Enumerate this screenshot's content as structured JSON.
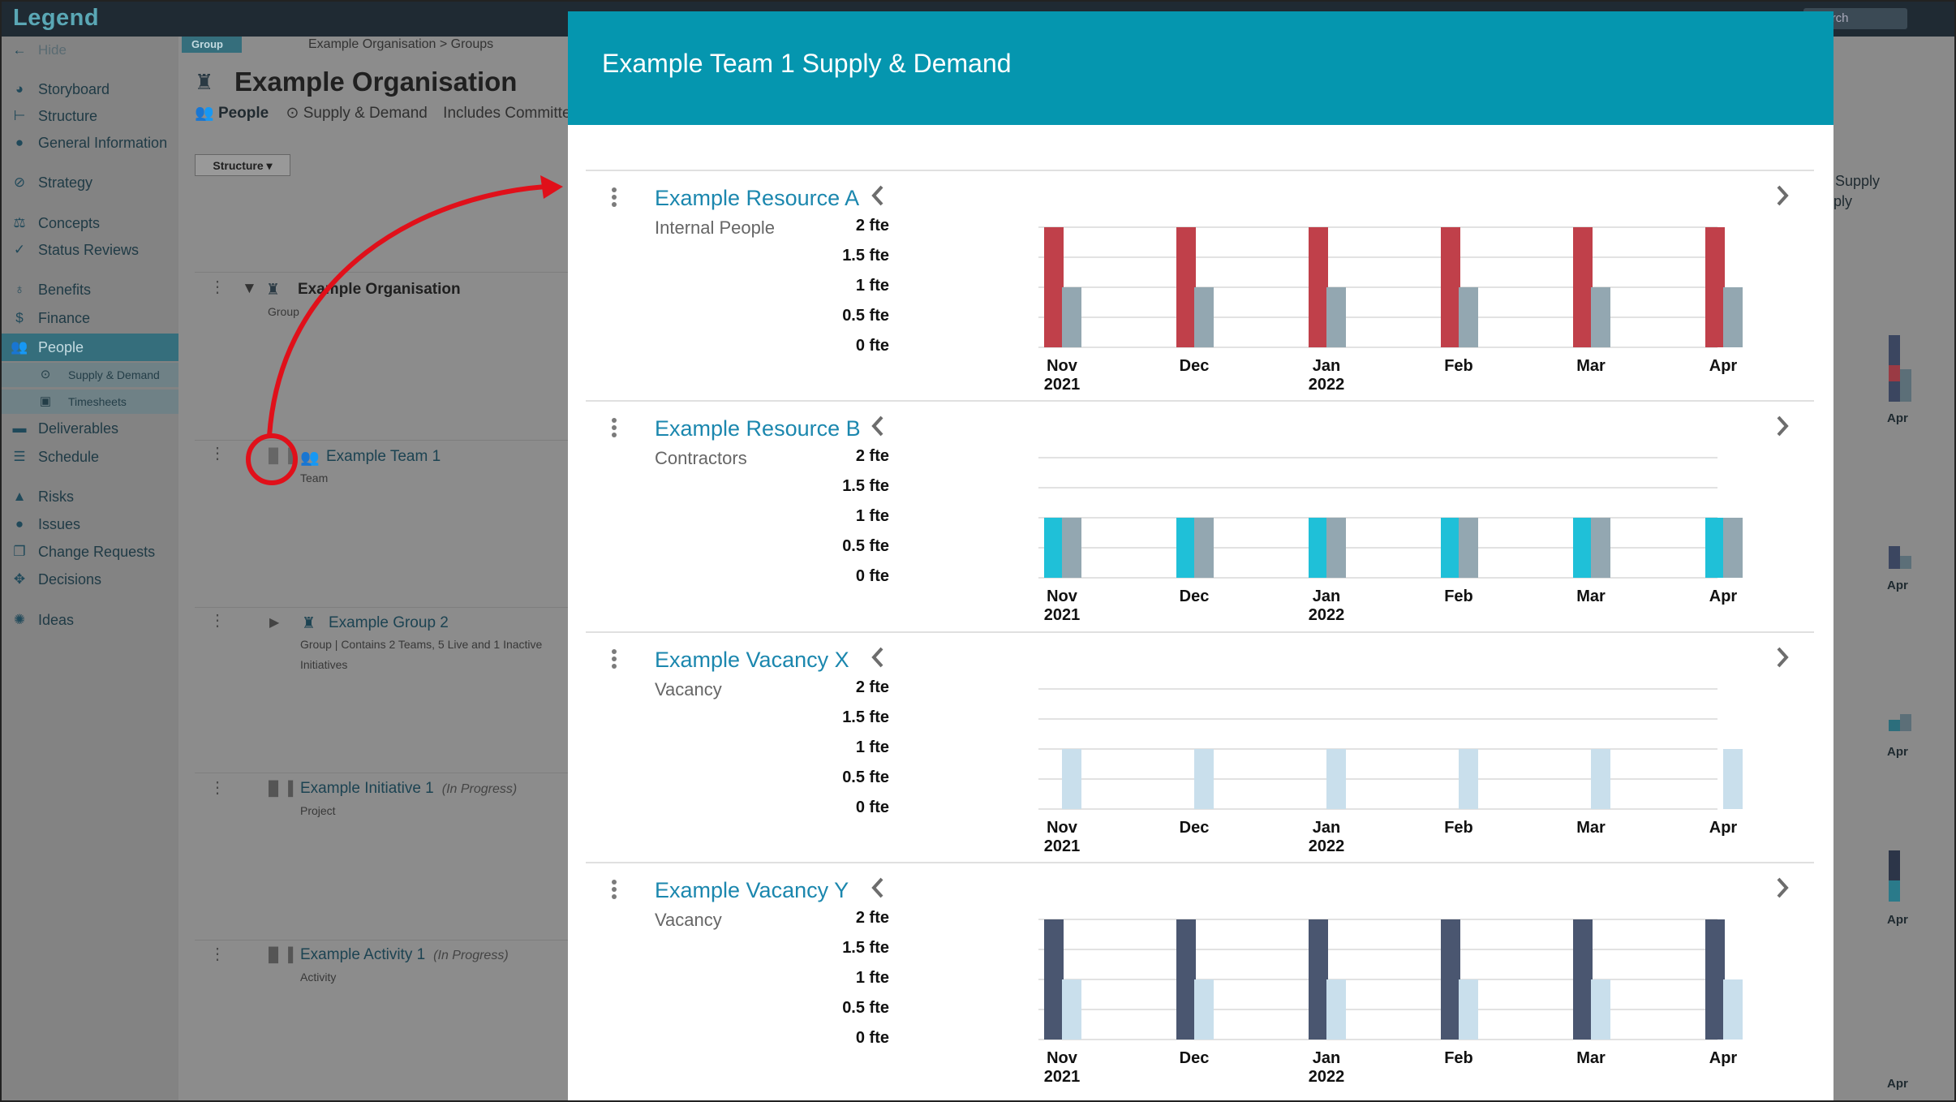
{
  "app": {
    "logo": "Legend",
    "search_placeholder": "Search"
  },
  "sidebar": {
    "hide_label": "Hide",
    "items": [
      {
        "label": "Storyboard",
        "icon": "palette-icon"
      },
      {
        "label": "Structure",
        "icon": "structure-icon"
      },
      {
        "label": "General Information",
        "icon": "info-icon"
      },
      {
        "label": "Strategy",
        "icon": "compass-icon"
      },
      {
        "label": "Concepts",
        "icon": "scales-icon"
      },
      {
        "label": "Status Reviews",
        "icon": "check-icon"
      },
      {
        "label": "Benefits",
        "icon": "medal-icon"
      },
      {
        "label": "Finance",
        "icon": "dollar-icon"
      },
      {
        "label": "People",
        "icon": "people-icon"
      },
      {
        "label": "Deliverables",
        "icon": "truck-icon"
      },
      {
        "label": "Schedule",
        "icon": "gantt-icon"
      },
      {
        "label": "Risks",
        "icon": "warning-icon"
      },
      {
        "label": "Issues",
        "icon": "alert-icon"
      },
      {
        "label": "Change Requests",
        "icon": "copy-icon"
      },
      {
        "label": "Decisions",
        "icon": "arrows-icon"
      },
      {
        "label": "Ideas",
        "icon": "bulb-icon"
      }
    ],
    "sub_items": [
      {
        "label": "Supply & Demand",
        "icon": "clock-icon"
      },
      {
        "label": "Timesheets",
        "icon": "timesheet-icon"
      }
    ]
  },
  "main": {
    "group_badge": "Group",
    "breadcrumb": "Example Organisation > Groups",
    "title": "Example Organisation",
    "people_label": "People",
    "tab_supply": "Supply & Demand",
    "includes_committed": "Includes Committed",
    "structure_button": "Structure ▾",
    "tree": [
      {
        "name": "Example Organisation",
        "sub": "Group"
      },
      {
        "name": "Example Team 1",
        "sub": "Team"
      },
      {
        "name": "Example Group 2",
        "sub": "Group | Contains 2 Teams, 5 Live and 1 Inactive",
        "sub2": "Initiatives"
      },
      {
        "name": "Example Initiative 1",
        "meta": "(In Progress)",
        "sub": "Project"
      },
      {
        "name": "Example Activity 1",
        "meta": "(In Progress)",
        "sub": "Activity"
      }
    ]
  },
  "right_strip": {
    "supply_text": "Supply",
    "ply_text": "ply",
    "apr_label": "Apr"
  },
  "modal": {
    "title": "Example Team 1 Supply & Demand",
    "y_ticks": [
      "2 fte",
      "1.5 fte",
      "1 fte",
      "0.5 fte",
      "0 fte"
    ],
    "months": [
      {
        "label": "Nov",
        "year": "2021"
      },
      {
        "label": "Dec",
        "year": ""
      },
      {
        "label": "Jan",
        "year": "2022"
      },
      {
        "label": "Feb",
        "year": ""
      },
      {
        "label": "Mar",
        "year": ""
      },
      {
        "label": "Apr",
        "year": ""
      }
    ],
    "resources": [
      {
        "name": "Example Resource A",
        "type": "Internal People"
      },
      {
        "name": "Example Resource B",
        "type": "Contractors"
      },
      {
        "name": "Example Vacancy X",
        "type": "Vacancy"
      },
      {
        "name": "Example Vacancy Y",
        "type": "Vacancy"
      }
    ]
  },
  "chart_data": [
    {
      "type": "bar",
      "categories": [
        "Nov 2021",
        "Dec",
        "Jan 2022",
        "Feb",
        "Mar",
        "Apr"
      ],
      "ylim": [
        0,
        2
      ],
      "ylabel": "",
      "series": [
        {
          "color": "#c0404a",
          "values": [
            2,
            2,
            2,
            2,
            2,
            2
          ]
        },
        {
          "color": "#93a7b1",
          "values": [
            1,
            1,
            1,
            1,
            1,
            1
          ]
        }
      ]
    },
    {
      "type": "bar",
      "categories": [
        "Nov 2021",
        "Dec",
        "Jan 2022",
        "Feb",
        "Mar",
        "Apr"
      ],
      "ylim": [
        0,
        2
      ],
      "series": [
        {
          "color": "#1fc0d8",
          "values": [
            1,
            1,
            1,
            1,
            1,
            1
          ]
        },
        {
          "color": "#93a7b1",
          "values": [
            1,
            1,
            1,
            1,
            1,
            1
          ]
        }
      ]
    },
    {
      "type": "bar",
      "categories": [
        "Nov 2021",
        "Dec",
        "Jan 2022",
        "Feb",
        "Mar",
        "Apr"
      ],
      "ylim": [
        0,
        2
      ],
      "series": [
        {
          "color": "#ffffff",
          "values": [
            0,
            0,
            0,
            0,
            0,
            0
          ]
        },
        {
          "color": "#c9dfec",
          "values": [
            1,
            1,
            1,
            1,
            1,
            1
          ]
        }
      ]
    },
    {
      "type": "bar",
      "categories": [
        "Nov 2021",
        "Dec",
        "Jan 2022",
        "Feb",
        "Mar",
        "Apr"
      ],
      "ylim": [
        0,
        2
      ],
      "series": [
        {
          "color": "#4a5670",
          "values": [
            2,
            2,
            2,
            2,
            2,
            2
          ]
        },
        {
          "color": "#c9dfec",
          "values": [
            1,
            1,
            1,
            1,
            1,
            1
          ]
        }
      ]
    }
  ],
  "colors": {
    "accent": "#0596af",
    "link": "#1b87ae",
    "annotation": "#e0101a"
  }
}
